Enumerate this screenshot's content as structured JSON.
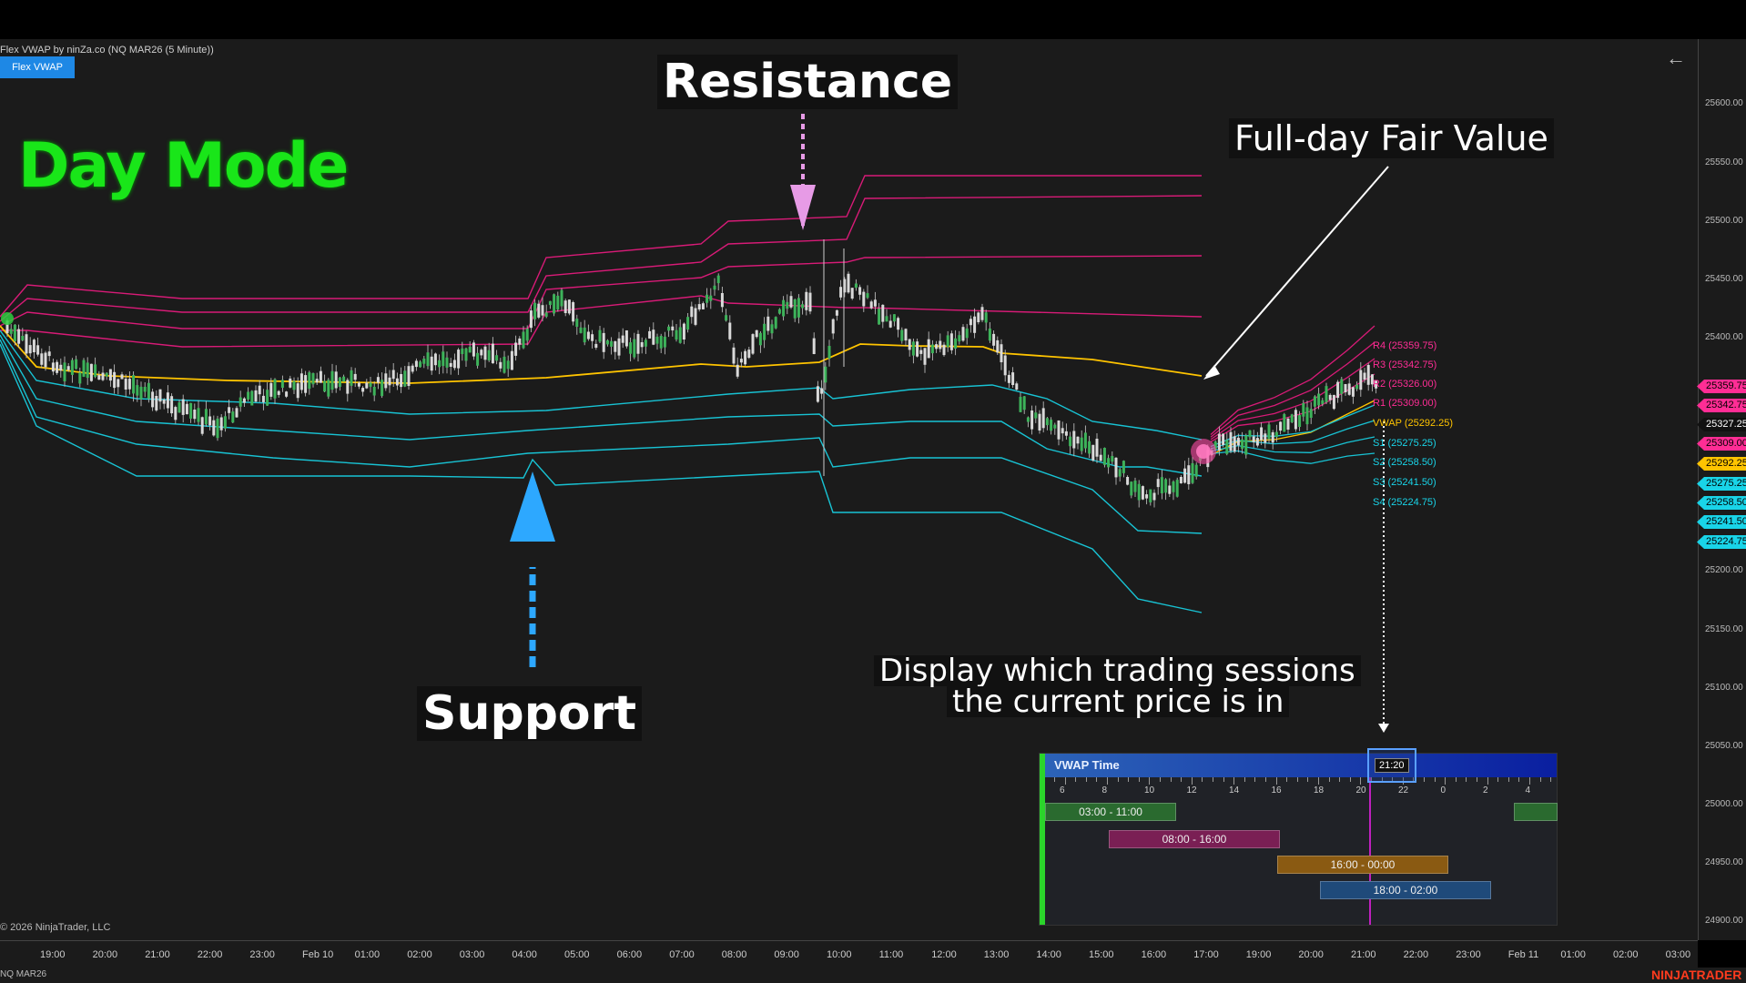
{
  "chart_title": "Flex VWAP by ninZa.co (NQ MAR26 (5 Minute))",
  "indicator_button": "Flex VWAP",
  "copyright": "© 2026 NinjaTrader, LLC",
  "instrument_footer": "NQ MAR26",
  "brand": "NINJATRADER",
  "back_icon": "arrow-left-icon",
  "annotations": {
    "mode": "Day Mode",
    "resistance": "Resistance",
    "support": "Support",
    "fair_value": "Full-day Fair Value",
    "sessions_line1": "Display which trading sessions",
    "sessions_line2": "the current price is in"
  },
  "level_labels": [
    {
      "text": "R4 (25359.75)",
      "color": "#ff2d95"
    },
    {
      "text": "R3 (25342.75)",
      "color": "#ff2d95"
    },
    {
      "text": "R2 (25326.00)",
      "color": "#ff2d95"
    },
    {
      "text": "R1 (25309.00)",
      "color": "#ff2d95"
    },
    {
      "text": "VWAP (25292.25)",
      "color": "#ffc400"
    },
    {
      "text": "S1 (25275.25)",
      "color": "#19d4e8"
    },
    {
      "text": "S2 (25258.50)",
      "color": "#19d4e8"
    },
    {
      "text": "S3 (25241.50)",
      "color": "#19d4e8"
    },
    {
      "text": "S4 (25224.75)",
      "color": "#19d4e8"
    }
  ],
  "price_tags": [
    {
      "text": "25359.75",
      "color": "#ff2d95"
    },
    {
      "text": "25342.75",
      "color": "#ff2d95"
    },
    {
      "text": "25327.25",
      "color": "#111111"
    },
    {
      "text": "25309.00",
      "color": "#ff2d95"
    },
    {
      "text": "25292.25",
      "color": "#ffc400"
    },
    {
      "text": "25275.25",
      "color": "#19d4e8"
    },
    {
      "text": "25258.50",
      "color": "#19d4e8"
    },
    {
      "text": "25241.50",
      "color": "#19d4e8"
    },
    {
      "text": "25224.75",
      "color": "#19d4e8"
    }
  ],
  "y_axis_labels": [
    "25600.00",
    "25550.00",
    "25500.00",
    "25450.00",
    "25400.00",
    "25200.00",
    "25150.00",
    "25100.00",
    "25050.00",
    "25000.00",
    "24950.00",
    "24900.00"
  ],
  "x_axis_labels": [
    "19:00",
    "20:00",
    "21:00",
    "22:00",
    "23:00",
    "Feb 10",
    "01:00",
    "02:00",
    "03:00",
    "04:00",
    "05:00",
    "06:00",
    "07:00",
    "08:00",
    "09:00",
    "10:00",
    "11:00",
    "12:00",
    "13:00",
    "14:00",
    "15:00",
    "16:00",
    "17:00",
    "19:00",
    "20:00",
    "21:00",
    "22:00",
    "23:00",
    "Feb 11",
    "01:00",
    "02:00",
    "03:00"
  ],
  "vwap_time": {
    "title": "VWAP Time",
    "current_time": "21:20",
    "ticks": [
      "6",
      "8",
      "10",
      "12",
      "14",
      "16",
      "18",
      "20",
      "22",
      "0",
      "2",
      "4"
    ],
    "sessions": [
      {
        "label": "03:00 - 11:00",
        "color": "#2a6a2f"
      },
      {
        "label": "08:00 - 16:00",
        "color": "#7a1f54"
      },
      {
        "label": "16:00 - 00:00",
        "color": "#8a5a12"
      },
      {
        "label": "18:00 - 02:00",
        "color": "#1f4a7a"
      }
    ]
  },
  "colors": {
    "resistance_band": "#d81b77",
    "support_band": "#18c3d4",
    "vwap": "#ffc400",
    "up_candle": "#3db35a",
    "down_candle": "#d9d9d9",
    "mode_text": "#19e619"
  }
}
